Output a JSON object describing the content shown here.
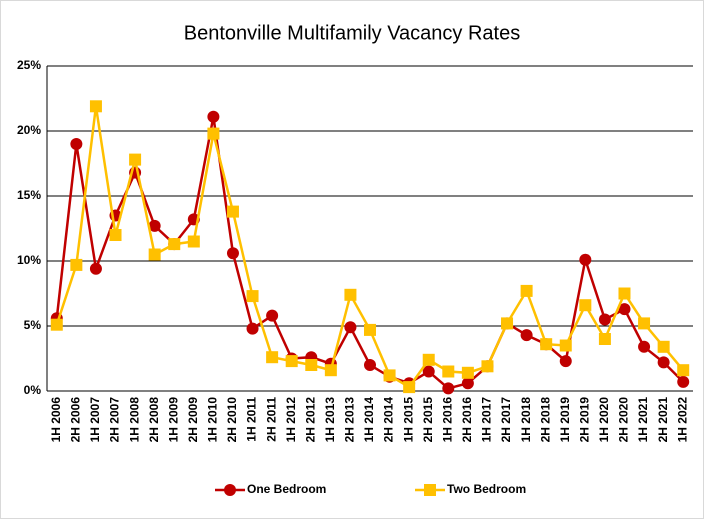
{
  "chart_data": {
    "type": "line",
    "title": "Bentonville Multifamily Vacancy Rates",
    "categories": [
      "1H 2006",
      "2H 2006",
      "1H 2007",
      "2H 2007",
      "1H 2008",
      "2H 2008",
      "1H 2009",
      "2H 2009",
      "1H 2010",
      "2H 2010",
      "1H 2011",
      "2H 2011",
      "1H 2012",
      "2H 2012",
      "1H 2013",
      "2H 2013",
      "1H 2014",
      "2H 2014",
      "1H 2015",
      "2H 2015",
      "1H 2016",
      "2H 2016",
      "1H 2017",
      "2H 2017",
      "1H 2018",
      "2H 2018",
      "1H 2019",
      "2H 2019",
      "1H 2020",
      "2H 2020",
      "1H 2021",
      "2H 2021",
      "1H 2022"
    ],
    "series": [
      {
        "name": "One Bedroom",
        "color": "#c00000",
        "marker": "circle",
        "values": [
          5.6,
          19.0,
          9.4,
          13.5,
          16.8,
          12.7,
          11.3,
          13.2,
          21.1,
          10.6,
          4.8,
          5.8,
          2.5,
          2.6,
          2.1,
          4.9,
          2.0,
          1.1,
          0.6,
          1.5,
          0.2,
          0.6,
          1.9,
          5.2,
          4.3,
          3.6,
          2.3,
          10.1,
          5.5,
          6.3,
          3.4,
          2.2,
          0.7
        ]
      },
      {
        "name": "Two Bedroom",
        "color": "#ffc000",
        "marker": "square",
        "values": [
          5.1,
          9.7,
          21.9,
          12.0,
          17.8,
          10.5,
          11.3,
          11.5,
          19.8,
          13.8,
          7.3,
          2.6,
          2.3,
          2.0,
          1.6,
          7.4,
          4.7,
          1.2,
          0.3,
          2.4,
          1.5,
          1.4,
          1.9,
          5.2,
          7.7,
          3.6,
          3.5,
          6.6,
          4.0,
          7.5,
          5.2,
          3.4,
          1.6
        ]
      }
    ],
    "ylim": [
      0,
      25
    ],
    "yticks": [
      {
        "value": 0,
        "label": "0%"
      },
      {
        "value": 5,
        "label": "5%"
      },
      {
        "value": 10,
        "label": "10%"
      },
      {
        "value": 15,
        "label": "15%"
      },
      {
        "value": 20,
        "label": "20%"
      },
      {
        "value": 25,
        "label": "25%"
      }
    ],
    "grid": true,
    "legend": "bottom"
  }
}
